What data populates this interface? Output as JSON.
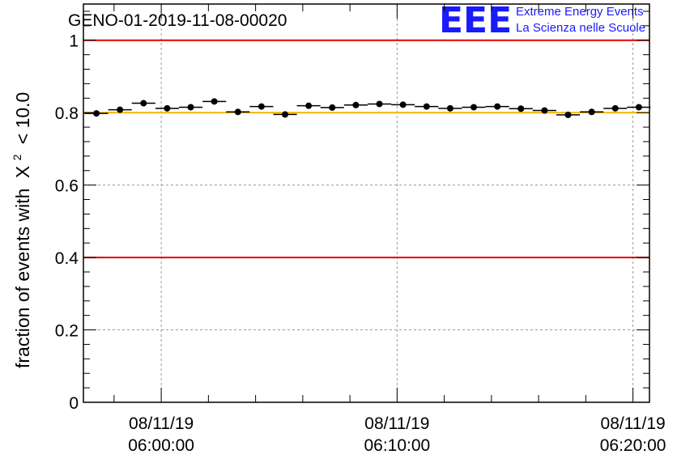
{
  "chart_data": {
    "type": "scatter",
    "title": "GENO-01-2019-11-08-00020",
    "ylabel": "fraction of events with",
    "ylabel_symbol": "X",
    "ylabel_sup": "2",
    "ylabel_suffix": "< 10.0",
    "xlabel": "",
    "ylim": [
      0,
      1.1
    ],
    "xlim_minutes": [
      -3.3,
      20.7
    ],
    "yticks": [
      "0",
      "0.2",
      "0.4",
      "0.6",
      "0.8",
      "1"
    ],
    "ytick_values": [
      0,
      0.2,
      0.4,
      0.6,
      0.8,
      1.0
    ],
    "xticks": [
      {
        "date": "08/11/19",
        "time": "06:00:00",
        "minute": 0
      },
      {
        "date": "08/11/19",
        "time": "06:10:00",
        "minute": 10
      },
      {
        "date": "08/11/19",
        "time": "06:20:00",
        "minute": 20
      }
    ],
    "grid": true,
    "reference_lines": [
      {
        "y": 1.0,
        "color": "#e00000"
      },
      {
        "y": 0.4,
        "color": "#e00000"
      },
      {
        "y": 0.8,
        "color": "#f5b800"
      }
    ],
    "series": [
      {
        "name": "fraction",
        "x_minutes": [
          -2.75,
          -1.75,
          -0.75,
          0.25,
          1.25,
          2.25,
          3.25,
          4.25,
          5.25,
          6.25,
          7.25,
          8.25,
          9.25,
          10.25,
          11.25,
          12.25,
          13.25,
          14.25,
          15.25,
          16.25,
          17.25,
          18.25,
          19.25,
          20.25
        ],
        "half_width_minutes": 0.5,
        "values": [
          0.798,
          0.808,
          0.826,
          0.812,
          0.815,
          0.831,
          0.802,
          0.817,
          0.795,
          0.819,
          0.814,
          0.821,
          0.824,
          0.822,
          0.817,
          0.812,
          0.815,
          0.817,
          0.811,
          0.806,
          0.794,
          0.802,
          0.812,
          0.815
        ]
      }
    ]
  },
  "logo": {
    "mark": "EEE",
    "line1": "Extreme Energy Events",
    "line2": "La Scienza nelle Scuole",
    "color": "#1a1aff"
  }
}
